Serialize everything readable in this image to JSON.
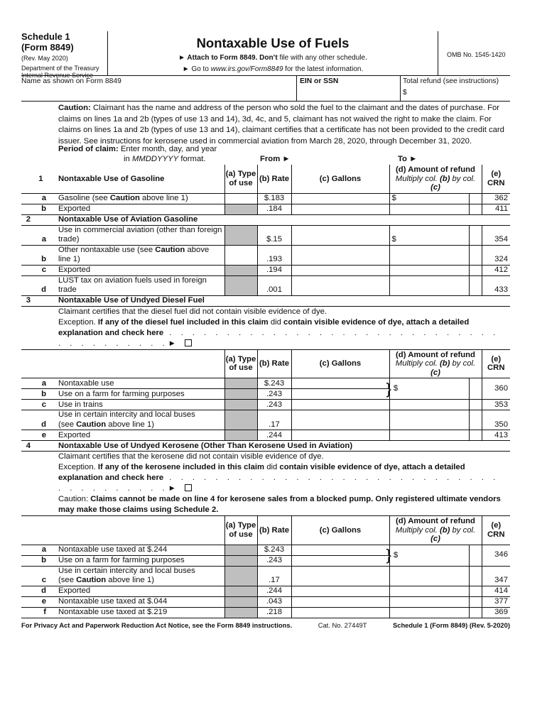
{
  "header": {
    "schedule": "Schedule 1",
    "form": "(Form 8849)",
    "rev": "(Rev. May 2020)",
    "dept": "Department of the Treasury",
    "irs": "Internal Revenue Service",
    "title": "Nontaxable Use of Fuels",
    "attach_bold": "► Attach to Form 8849. Don’t",
    "attach_rest": " file with any other schedule.",
    "goto_pre": "► Go to ",
    "goto_url": "www.irs.gov/Form8849",
    "goto_post": " for the latest information.",
    "omb": "OMB No. 1545-1420"
  },
  "name_row": {
    "name_label": "Name as shown on Form 8849",
    "ein_label": "EIN or SSN",
    "total_label": "Total refund (see instructions)",
    "total_dollar": "$"
  },
  "caution": {
    "label": "Caution:",
    "text": " Claimant has the name and address of the person who sold the fuel to the claimant and the dates of purchase. For claims on lines 1a and 2b (types of use 13 and 14), 3d, 4c, and 5, claimant has not waived the right to make the claim. For claims on lines 1a and 2b (types of use 13 and 14), claimant certifies that a certificate has not been provided to the credit card issuer. See instructions for kerosene used in commercial aviation from March 28, 2020, through December 31, 2020."
  },
  "period": {
    "label": "Period of claim:",
    "instr1": "Enter month, day, and year",
    "instr2_pre": "in ",
    "instr2_em": "MMDDYYYY",
    "instr2_post": " format.",
    "from": "From ►",
    "to": "To ►"
  },
  "columns": {
    "a": "(a) Type of use",
    "b": "(b) Rate",
    "c": "(c) Gallons",
    "d_title": "(d) Amount of refund",
    "d_sub_1": "Multiply col. ",
    "d_sub_2": "(b)",
    "d_sub_3": " by col. ",
    "d_sub_4": "(c)",
    "e": "(e) CRN"
  },
  "sections": [
    {
      "num": "1",
      "title": "Nontaxable Use of Gasoline",
      "inline_header": true,
      "rows": [
        {
          "letter": "a",
          "label": [
            "Gasoline (see ",
            "Caution",
            " above line 1)"
          ],
          "rate": "$.183",
          "crn": "362",
          "shade_a": false,
          "dollar": "$"
        },
        {
          "letter": "b",
          "label": [
            "Exported"
          ],
          "rate": ".184",
          "crn": "411",
          "shade_a": true
        }
      ]
    },
    {
      "num": "2",
      "title": "Nontaxable Use of Aviation Gasoline",
      "rows": [
        {
          "letter": "a",
          "label": [
            "Use in commercial aviation (other than foreign\ntrade)"
          ],
          "rate": "$.15",
          "crn": "354",
          "shade_a": true,
          "dollar": "$"
        },
        {
          "letter": "b",
          "label": [
            "Other nontaxable use (see ",
            "Caution",
            " above line 1)"
          ],
          "rate": ".193",
          "crn": "324",
          "shade_a": false
        },
        {
          "letter": "c",
          "label": [
            "Exported"
          ],
          "rate": ".194",
          "crn": "412",
          "shade_a": true
        },
        {
          "letter": "d",
          "label": [
            "LUST tax on aviation fuels used in foreign trade"
          ],
          "rate": ".001",
          "crn": "433",
          "shade_a": true
        }
      ]
    },
    {
      "num": "3",
      "title": "Nontaxable Use of Undyed Diesel Fuel",
      "certify": "Claimant certifies that the diesel fuel did not contain visible evidence of dye.",
      "exception": [
        "Exception.",
        " If any of the diesel fuel included in this claim ",
        "did",
        " contain visible evidence of dye, attach a detailed explanation and check here"
      ],
      "rows": [
        {
          "letter": "a",
          "label": [
            "Nontaxable use"
          ],
          "rate": "$.243",
          "shade_a": true,
          "group_start": true,
          "group_crn": "360",
          "group_dollar": "$"
        },
        {
          "letter": "b",
          "label": [
            "Use on a farm for farming purposes"
          ],
          "rate": ".243",
          "shade_a": true,
          "group_member": true
        },
        {
          "letter": "c",
          "label": [
            "Use in trains"
          ],
          "rate": ".243",
          "crn": "353",
          "shade_a": true
        },
        {
          "letter": "d",
          "label": [
            "Use in certain intercity and local buses\n(see ",
            "Caution",
            " above line 1)"
          ],
          "rate": ".17",
          "crn": "350",
          "shade_a": true
        },
        {
          "letter": "e",
          "label": [
            "Exported"
          ],
          "rate": ".244",
          "crn": "413",
          "shade_a": true
        }
      ]
    },
    {
      "num": "4",
      "title": "Nontaxable Use of Undyed Kerosene (Other Than Kerosene Used in Aviation)",
      "certify": "Claimant certifies that the kerosene did not contain visible evidence of dye.",
      "exception": [
        "Exception.",
        " If any of the kerosene included in this claim ",
        "did",
        " contain visible evidence of dye, attach a detailed explanation and check here"
      ],
      "caution": [
        "Caution:",
        " Claims cannot be made on line 4 for kerosene sales from a blocked pump. Only registered ultimate vendors may make those claims using Schedule 2."
      ],
      "rows": [
        {
          "letter": "a",
          "label": [
            "Nontaxable use taxed at $.244"
          ],
          "rate": "$.243",
          "shade_a": true,
          "group_start": true,
          "group_crn": "346",
          "group_dollar": "$"
        },
        {
          "letter": "b",
          "label": [
            "Use on a farm for farming purposes"
          ],
          "rate": ".243",
          "shade_a": true,
          "group_member": true
        },
        {
          "letter": "c",
          "label": [
            "Use in certain intercity and local buses\n(see ",
            "Caution",
            " above line 1)"
          ],
          "rate": ".17",
          "crn": "347",
          "shade_a": true
        },
        {
          "letter": "d",
          "label": [
            "Exported"
          ],
          "rate": ".244",
          "crn": "414",
          "shade_a": true
        },
        {
          "letter": "e",
          "label": [
            "Nontaxable use taxed at $.044"
          ],
          "rate": ".043",
          "crn": "377",
          "shade_a": true
        },
        {
          "letter": "f",
          "label": [
            "Nontaxable use taxed at $.219"
          ],
          "rate": ".218",
          "crn": "369",
          "shade_a": true
        }
      ]
    }
  ],
  "check_arrow": "►",
  "footer": {
    "left": "For Privacy Act and Paperwork Reduction Act Notice, see the Form 8849 instructions.",
    "cat": "Cat. No. 27449T",
    "right": "Schedule 1 (Form 8849) (Rev. 5-2020)"
  }
}
